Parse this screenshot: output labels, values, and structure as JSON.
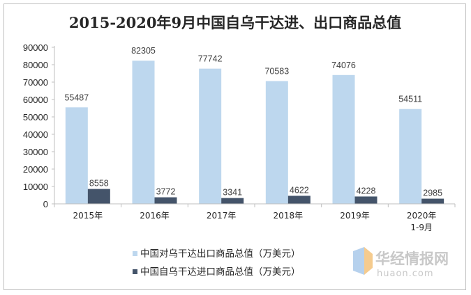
{
  "chart_data": {
    "type": "bar",
    "title": "2015-2020年9月中国自乌干达进、出口商品总值",
    "categories": [
      "2015年",
      "2016年",
      "2017年",
      "2018年",
      "2019年",
      "2020年\n1-9月"
    ],
    "series": [
      {
        "name": "中国对乌干达出口商品总值（万美元）",
        "values": [
          55487,
          82305,
          77742,
          70583,
          74076,
          54511
        ],
        "color": "#bdd7ee"
      },
      {
        "name": "中国自乌干达进口商品总值（万美元）",
        "values": [
          8558,
          3772,
          3341,
          4622,
          4228,
          2985
        ],
        "color": "#44546a"
      }
    ],
    "ylim": [
      0,
      90000
    ],
    "yticks": [
      0,
      10000,
      20000,
      30000,
      40000,
      50000,
      60000,
      70000,
      80000,
      90000
    ],
    "grid": false,
    "legend_position": "bottom"
  },
  "watermark": {
    "cn": "华经情报网",
    "en": "huaon.com"
  }
}
